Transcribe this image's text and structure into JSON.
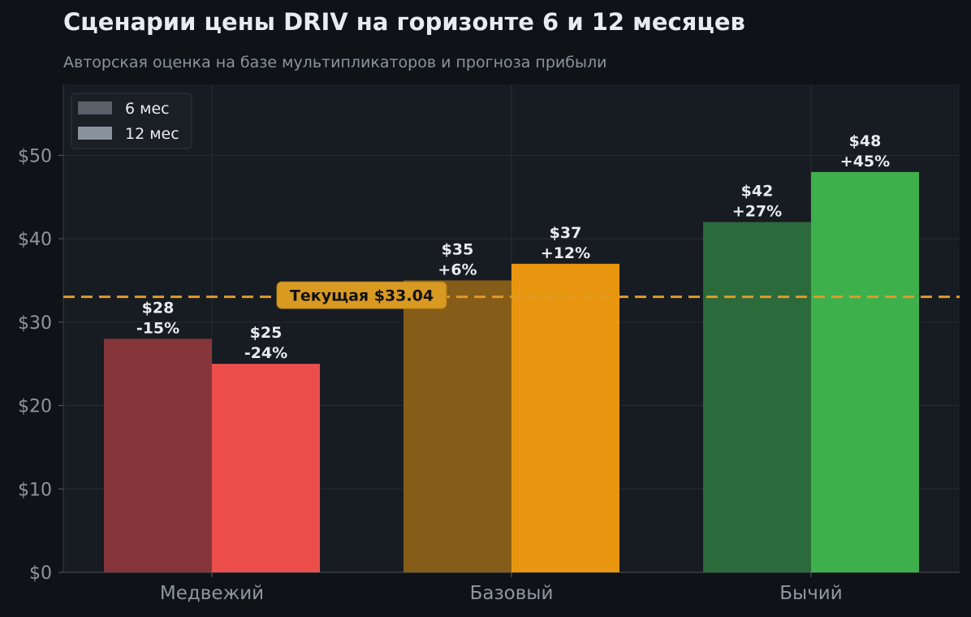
{
  "chart_data": {
    "type": "bar",
    "title": "Сценарии цены DRIV на горизонте 6 и 12 месяцев",
    "subtitle": "Авторская оценка на базе мультипликаторов и прогноза прибыли",
    "categories": [
      "Медвежий",
      "Базовый",
      "Бычий"
    ],
    "series": [
      {
        "name": "6 мес",
        "values": [
          28,
          35,
          42
        ],
        "labels": [
          "$28\n-15%",
          "$35\n+6%",
          "$42\n+27%"
        ],
        "colors": [
          "#86363a",
          "#855d18",
          "#2b6a3a"
        ],
        "legend_color": "#5a5f6a"
      },
      {
        "name": "12 мес",
        "values": [
          25,
          37,
          48
        ],
        "labels": [
          "$25\n-24%",
          "$37\n+12%",
          "$48\n+45%"
        ],
        "colors": [
          "#ec4f4b",
          "#e8960f",
          "#3db04c"
        ],
        "legend_color": "#8a929c"
      }
    ],
    "reference_line": {
      "value": 33.04,
      "label": "Текущая $33.04",
      "color": "#e09a2a"
    },
    "yticks": [
      0,
      10,
      20,
      30,
      40,
      50
    ],
    "ytick_labels": [
      "$0",
      "$10",
      "$20",
      "$30",
      "$40",
      "$50"
    ],
    "ylim": [
      0,
      58.5
    ],
    "grid": true,
    "legend_position": "top-left",
    "background": "#0f1317",
    "plot_background": "#171b22"
  }
}
